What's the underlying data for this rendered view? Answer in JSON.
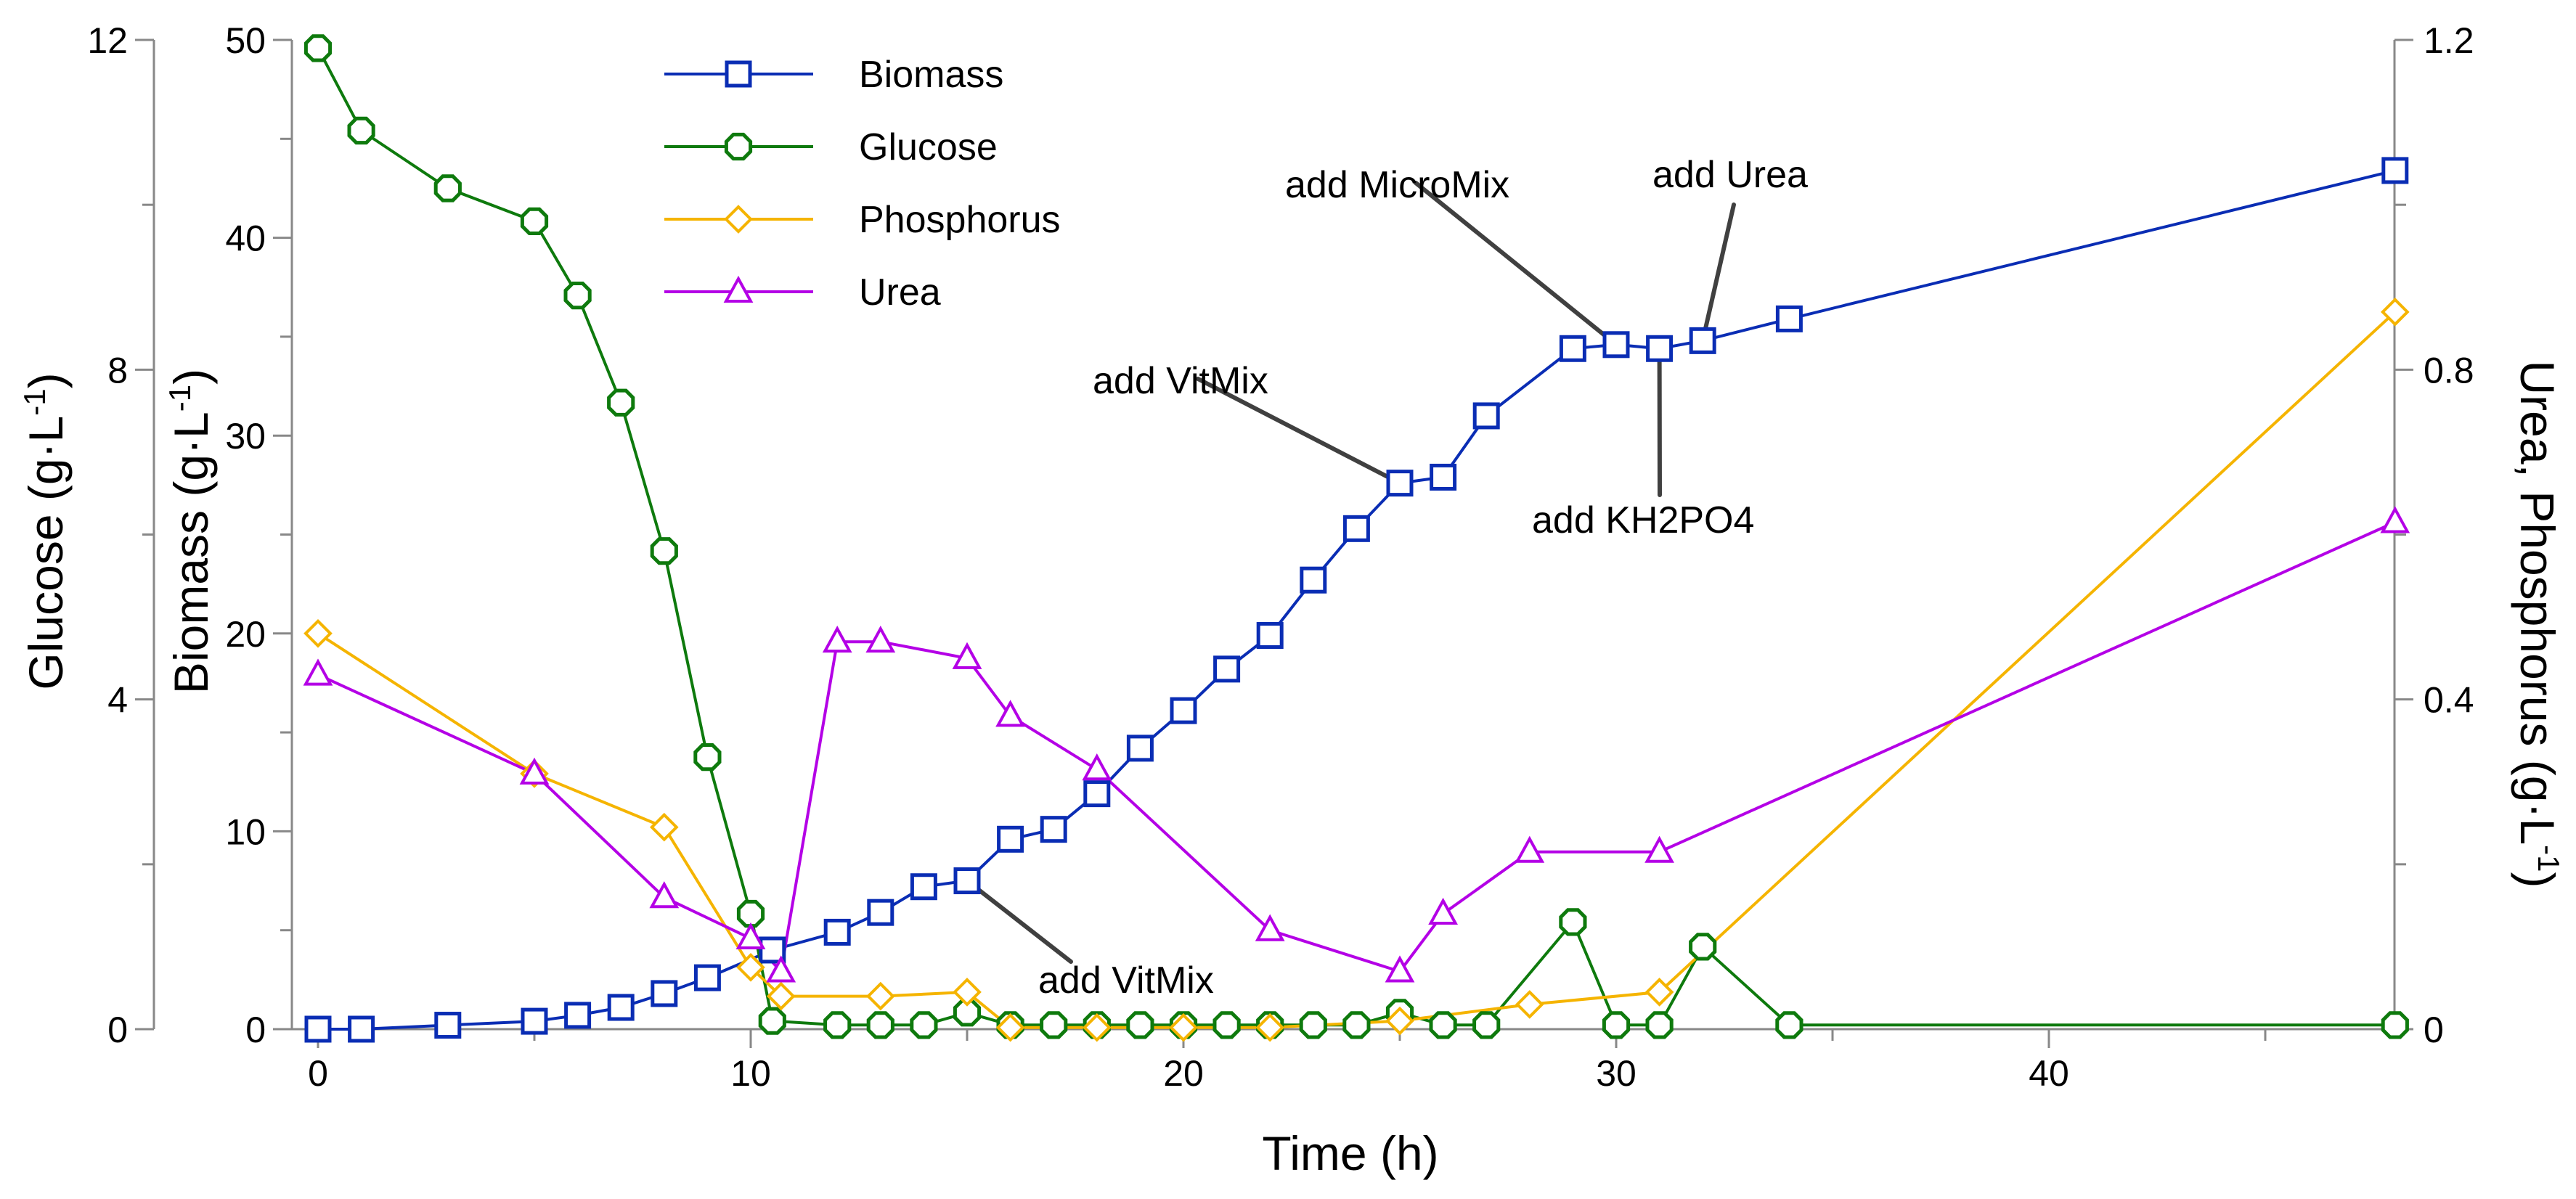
{
  "chart_data": {
    "type": "line",
    "title": "",
    "xlabel": "Time (h)",
    "xlim": [
      0,
      48
    ],
    "xticks": [
      0,
      10,
      20,
      30,
      40
    ],
    "axes": {
      "glucose": {
        "label": "Glucose (g·L-1)",
        "label_main": "Glucose (g·L",
        "label_sup": "-1",
        "label_end": ")",
        "range": [
          0,
          12
        ],
        "ticks": [
          0,
          4,
          8,
          12
        ]
      },
      "biomass": {
        "label": "Biomass (g·L-1)",
        "label_main": "Biomass (g·L",
        "label_sup": "-1",
        "label_end": ")",
        "range": [
          0,
          50
        ],
        "ticks": [
          0,
          10,
          20,
          30,
          40,
          50
        ]
      },
      "right": {
        "label": "Urea, Phosphorus (g·L-1)",
        "label_main": "Urea, Phosphorus (g·L",
        "label_sup": "-1",
        "label_end": ")",
        "range": [
          0,
          1.2
        ],
        "ticks": [
          "0",
          "0.4",
          "0.8",
          "1.2"
        ]
      }
    },
    "grid": false,
    "legend_position": "top-center",
    "series": [
      {
        "name": "Biomass",
        "axis": "biomass",
        "color": "#0A2DB4",
        "marker": "square",
        "x": [
          0,
          1,
          3,
          5,
          6,
          7,
          8,
          9,
          10.5,
          12,
          13,
          14,
          15,
          16,
          17,
          18,
          19,
          20,
          21,
          22,
          23,
          24,
          25,
          26,
          27,
          29,
          30,
          31,
          32,
          34,
          48
        ],
        "y": [
          0,
          0,
          0.2,
          0.4,
          0.7,
          1.1,
          1.8,
          2.6,
          4.0,
          4.9,
          5.9,
          7.2,
          7.5,
          9.6,
          10.1,
          11.9,
          14.2,
          16.1,
          18.2,
          19.9,
          22.7,
          25.3,
          27.6,
          27.9,
          31.0,
          34.4,
          34.6,
          34.4,
          34.8,
          35.9,
          43.4
        ]
      },
      {
        "name": "Glucose",
        "axis": "glucose",
        "color": "#0E7A0D",
        "marker": "octagon",
        "x": [
          0,
          1,
          3,
          5,
          6,
          7,
          8,
          9,
          10,
          10.5,
          12,
          13,
          14,
          15,
          16,
          17,
          18,
          19,
          20,
          21,
          22,
          23,
          24,
          25,
          26,
          27,
          29,
          30,
          31,
          32,
          34,
          48
        ],
        "y": [
          11.9,
          10.9,
          10.2,
          9.8,
          8.9,
          7.6,
          5.8,
          3.3,
          1.4,
          0.1,
          0.05,
          0.05,
          0.05,
          0.2,
          0.05,
          0.05,
          0.05,
          0.05,
          0.05,
          0.05,
          0.05,
          0.05,
          0.05,
          0.2,
          0.05,
          0.05,
          1.3,
          0.05,
          0.05,
          1.0,
          0.05,
          0.05
        ]
      },
      {
        "name": "Phosphorus",
        "axis": "right",
        "color": "#F5B400",
        "marker": "diamond",
        "x": [
          0,
          5,
          8,
          10,
          10.7,
          13,
          15,
          16,
          18,
          20,
          22,
          25,
          28,
          31,
          48
        ],
        "y": [
          0.48,
          0.31,
          0.245,
          0.075,
          0.04,
          0.04,
          0.045,
          0.002,
          0.002,
          0.002,
          0.002,
          0.01,
          0.03,
          0.045,
          0.87
        ]
      },
      {
        "name": "Urea",
        "axis": "right",
        "color": "#B400E6",
        "marker": "triangle",
        "x": [
          0,
          5,
          8,
          10,
          10.7,
          12,
          13,
          15,
          16,
          18,
          22,
          25,
          26,
          28,
          31,
          48
        ],
        "y": [
          0.43,
          0.31,
          0.16,
          0.11,
          0.07,
          0.47,
          0.47,
          0.45,
          0.38,
          0.315,
          0.12,
          0.07,
          0.14,
          0.215,
          0.215,
          0.615
        ]
      }
    ],
    "annotations": [
      {
        "text": "add VitMix",
        "target": {
          "series": "Biomass",
          "x": 15
        }
      },
      {
        "text": "add VitMix",
        "target": {
          "series": "Biomass",
          "x": 25
        }
      },
      {
        "text": "add MicroMix",
        "target": {
          "series": "Biomass",
          "x": 30
        }
      },
      {
        "text": "add KH2PO4",
        "target": {
          "series": "Biomass",
          "x": 31
        }
      },
      {
        "text": "add Urea",
        "target": {
          "series": "Biomass",
          "x": 32
        }
      }
    ]
  }
}
